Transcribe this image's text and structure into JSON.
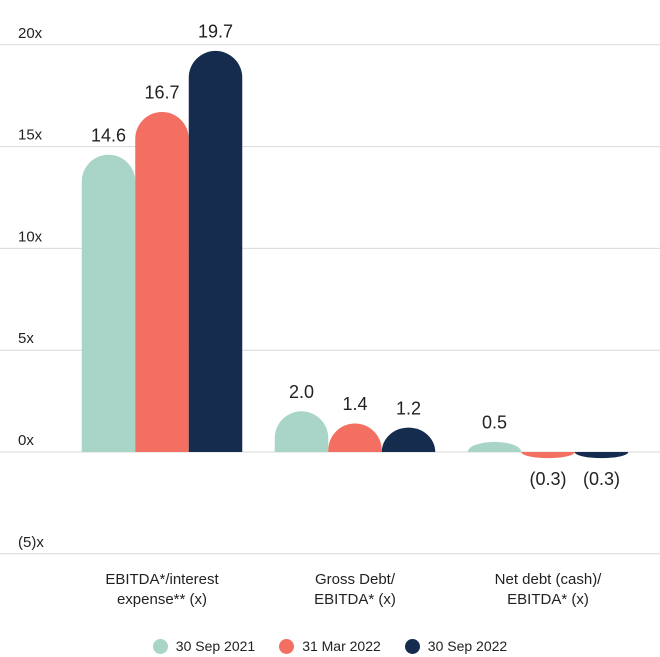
{
  "chart_data": {
    "type": "bar",
    "categories": [
      "EBITDA*/interest\nexpense** (x)",
      "Gross Debt/\nEBITDA* (x)",
      "Net debt (cash)/\nEBITDA* (x)"
    ],
    "series": [
      {
        "name": "30 Sep 2021",
        "color": "#a8d5c8",
        "values": [
          14.6,
          2.0,
          0.5
        ],
        "value_labels": [
          "14.6",
          "2.0",
          "0.5"
        ]
      },
      {
        "name": "31 Mar 2022",
        "color": "#f36f62",
        "values": [
          16.7,
          1.4,
          -0.3
        ],
        "value_labels": [
          "16.7",
          "1.4",
          "(0.3)"
        ]
      },
      {
        "name": "30 Sep 2022",
        "color": "#152c4e",
        "values": [
          19.7,
          1.2,
          -0.3
        ],
        "value_labels": [
          "19.7",
          "1.2",
          "(0.3)"
        ]
      }
    ],
    "ylim": [
      -5,
      20
    ],
    "yticks": [
      {
        "value": -5,
        "label": "(5)x"
      },
      {
        "value": 0,
        "label": "0x"
      },
      {
        "value": 5,
        "label": "5x"
      },
      {
        "value": 10,
        "label": "10x"
      },
      {
        "value": 15,
        "label": "15x"
      },
      {
        "value": 20,
        "label": "20x"
      }
    ],
    "grid": true
  }
}
